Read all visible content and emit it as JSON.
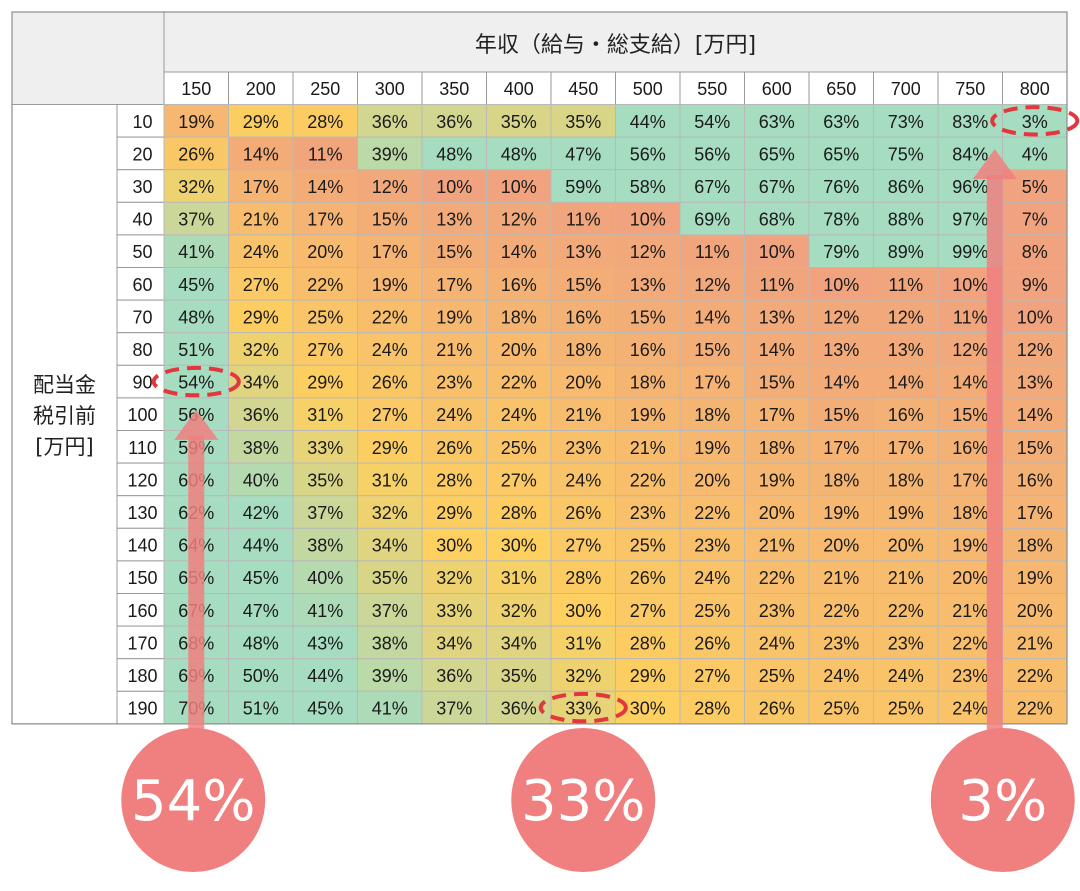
{
  "chart_data": {
    "type": "heatmap",
    "column_title": "年収（給与・総支給）[万円]",
    "row_title_lines": [
      "配当金",
      "税引前",
      "[万円]"
    ],
    "columns": [
      150,
      200,
      250,
      300,
      350,
      400,
      450,
      500,
      550,
      600,
      650,
      700,
      750,
      800
    ],
    "rows": [
      10,
      20,
      30,
      40,
      50,
      60,
      70,
      80,
      90,
      100,
      110,
      120,
      130,
      140,
      150,
      160,
      170,
      180,
      190
    ],
    "values": [
      [
        19,
        29,
        28,
        36,
        36,
        35,
        35,
        44,
        54,
        63,
        63,
        73,
        83,
        3
      ],
      [
        26,
        14,
        11,
        39,
        48,
        48,
        47,
        56,
        56,
        65,
        65,
        75,
        84,
        4
      ],
      [
        32,
        17,
        14,
        12,
        10,
        10,
        59,
        58,
        67,
        67,
        76,
        86,
        96,
        5
      ],
      [
        37,
        21,
        17,
        15,
        13,
        12,
        11,
        10,
        69,
        68,
        78,
        88,
        97,
        7
      ],
      [
        41,
        24,
        20,
        17,
        15,
        14,
        13,
        12,
        11,
        10,
        79,
        89,
        99,
        8
      ],
      [
        45,
        27,
        22,
        19,
        17,
        16,
        15,
        13,
        12,
        11,
        10,
        11,
        10,
        9
      ],
      [
        48,
        29,
        25,
        22,
        19,
        18,
        16,
        15,
        14,
        13,
        12,
        12,
        11,
        10
      ],
      [
        51,
        32,
        27,
        24,
        21,
        20,
        18,
        16,
        15,
        14,
        13,
        13,
        12,
        12
      ],
      [
        54,
        34,
        29,
        26,
        23,
        22,
        20,
        18,
        17,
        15,
        14,
        14,
        14,
        13
      ],
      [
        56,
        36,
        31,
        27,
        24,
        24,
        21,
        19,
        18,
        17,
        15,
        16,
        15,
        14
      ],
      [
        59,
        38,
        33,
        29,
        26,
        25,
        23,
        21,
        19,
        18,
        17,
        17,
        16,
        15
      ],
      [
        60,
        40,
        35,
        31,
        28,
        27,
        24,
        22,
        20,
        19,
        18,
        18,
        17,
        16
      ],
      [
        62,
        42,
        37,
        32,
        29,
        28,
        26,
        23,
        22,
        20,
        19,
        19,
        18,
        17
      ],
      [
        64,
        44,
        38,
        34,
        30,
        30,
        27,
        25,
        23,
        21,
        20,
        20,
        19,
        18
      ],
      [
        65,
        45,
        40,
        35,
        32,
        31,
        28,
        26,
        24,
        22,
        21,
        21,
        20,
        19
      ],
      [
        67,
        47,
        41,
        37,
        33,
        32,
        30,
        27,
        25,
        23,
        22,
        22,
        21,
        20
      ],
      [
        68,
        48,
        43,
        38,
        34,
        34,
        31,
        28,
        26,
        24,
        23,
        23,
        22,
        21
      ],
      [
        69,
        50,
        44,
        39,
        36,
        35,
        32,
        29,
        27,
        25,
        24,
        24,
        23,
        22
      ],
      [
        70,
        51,
        45,
        41,
        37,
        36,
        33,
        30,
        28,
        26,
        25,
        25,
        24,
        22
      ]
    ],
    "value_suffix": "%",
    "colors": {
      "high": "#f0a37e",
      "mid": "#fdd060",
      "low": "#a6dcc0"
    },
    "highlights": [
      {
        "row": 90,
        "column": 150,
        "value": 54,
        "label": "54%"
      },
      {
        "row": 190,
        "column": 450,
        "value": 33,
        "label": "33%"
      },
      {
        "row": 10,
        "column": 800,
        "value": 3,
        "label": "3%"
      }
    ],
    "accent_color": "#f07f7f",
    "dashed_color": "#e0383c"
  }
}
